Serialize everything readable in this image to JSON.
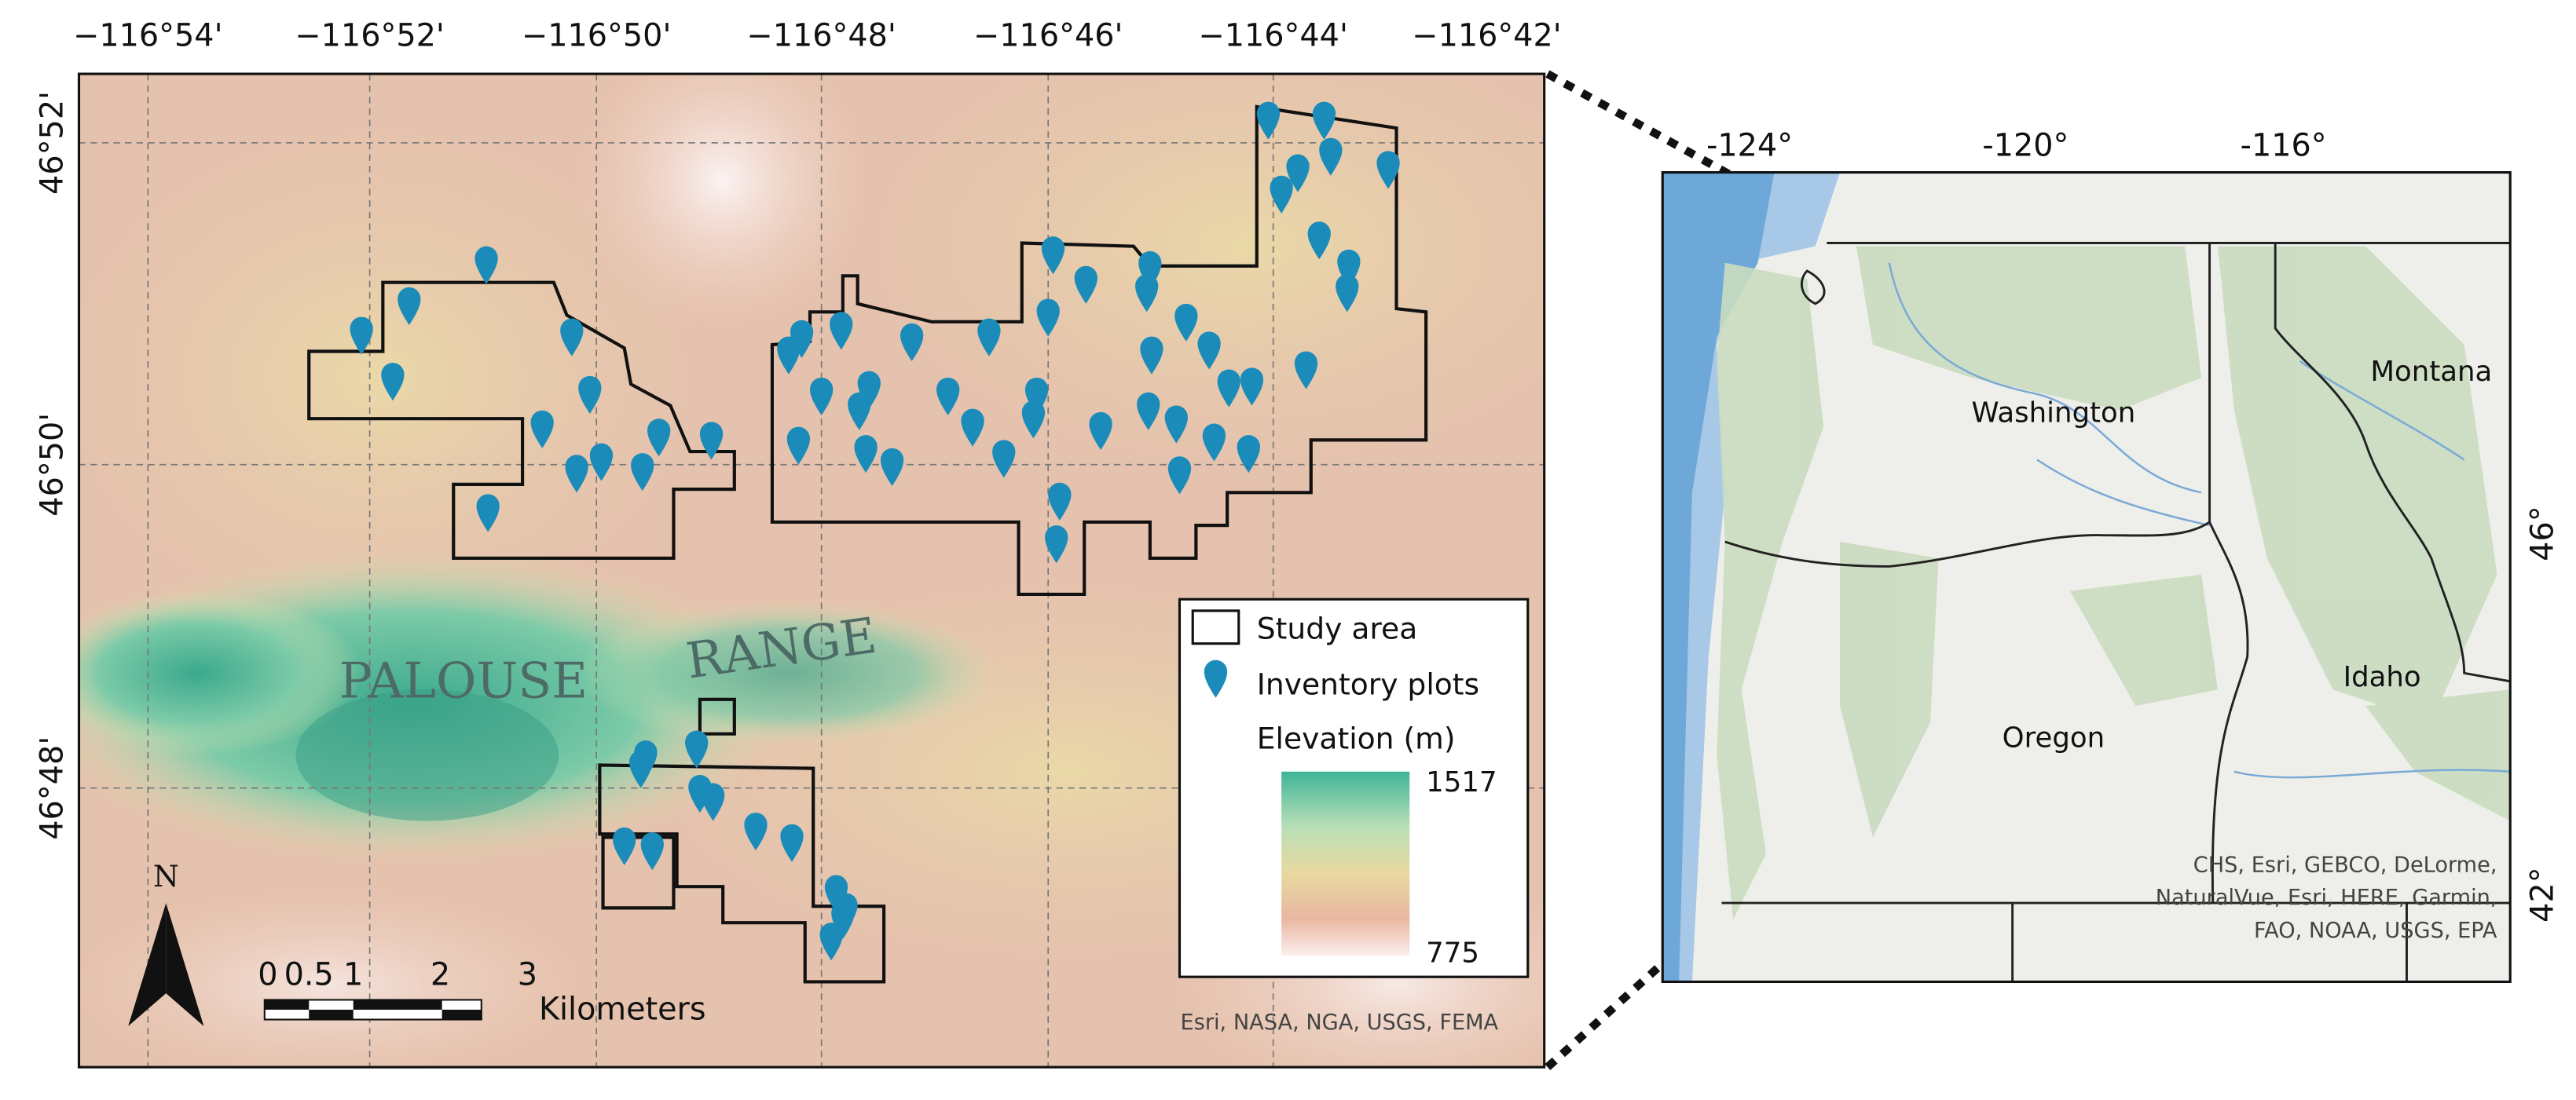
{
  "left_map": {
    "lon_ticks": [
      "−116°54'",
      "−116°52'",
      "−116°50'",
      "−116°48'",
      "−116°46'",
      "−116°44'",
      "−116°42'"
    ],
    "lat_ticks": [
      "46°52'",
      "46°50'",
      "46°48'"
    ],
    "place_labels": [
      "PALOUSE",
      "RANGE"
    ],
    "north_arrow": "N",
    "scale_bar": {
      "ticks": [
        "0",
        "0.5",
        "1",
        "2",
        "3"
      ],
      "unit": "Kilometers"
    },
    "legend": {
      "study_area": "Study area",
      "plots": "Inventory plots",
      "elevation_title": "Elevation (m)",
      "elevation_max": 1517,
      "elevation_min": 775
    },
    "attribution": "Esri, NASA, NGA, USGS, FEMA"
  },
  "right_map": {
    "lon_ticks": [
      "-124°",
      "-120°",
      "-116°"
    ],
    "lat_ticks": [
      "46°",
      "42°"
    ],
    "states": [
      "Washington",
      "Montana",
      "Idaho",
      "Oregon"
    ],
    "attribution": [
      "CHS, Esri, GEBCO, DeLorme,",
      "NaturalVue, Esri, HERE, Garmin,",
      "FAO, NOAA, USGS, EPA"
    ]
  }
}
